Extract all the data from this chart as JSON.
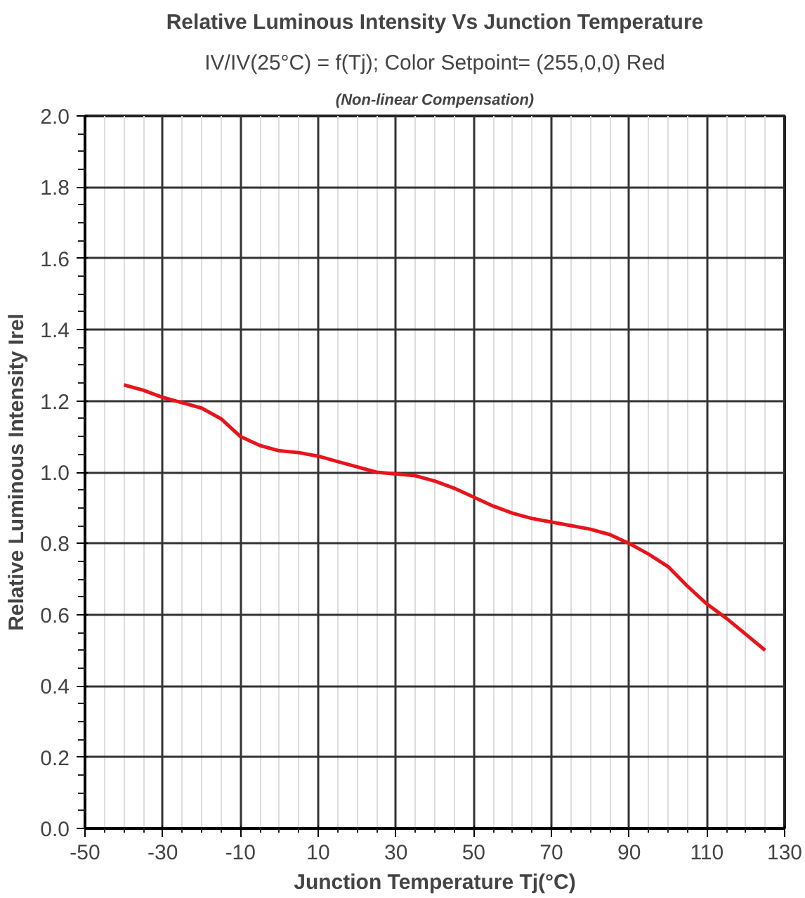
{
  "chart_data": {
    "type": "line",
    "title": "Relative Luminous Intensity Vs Junction Temperature",
    "subtitle": "IV/IV(25°C) = f(Tj); Color Setpoint= (255,0,0) Red",
    "annotations": [
      "(Non-linear Compensation)"
    ],
    "xlabel": "Junction Temperature Tj(°C)",
    "ylabel": "Relative Luminous Intensity Irel",
    "x": [
      -40,
      -35,
      -30,
      -25,
      -20,
      -15,
      -10,
      -5,
      0,
      5,
      10,
      15,
      20,
      25,
      30,
      35,
      40,
      45,
      50,
      55,
      60,
      65,
      70,
      75,
      80,
      85,
      90,
      95,
      100,
      105,
      110,
      115,
      120,
      125
    ],
    "series": [
      {
        "color": "#e8141c",
        "values": [
          1.245,
          1.23,
          1.21,
          1.195,
          1.18,
          1.15,
          1.1,
          1.075,
          1.06,
          1.055,
          1.045,
          1.03,
          1.015,
          1.0,
          0.995,
          0.99,
          0.975,
          0.955,
          0.93,
          0.905,
          0.885,
          0.87,
          0.86,
          0.85,
          0.84,
          0.825,
          0.8,
          0.77,
          0.735,
          0.68,
          0.63,
          0.59,
          0.545,
          0.5
        ]
      }
    ],
    "xlim": [
      -50,
      130
    ],
    "xticks": [
      -50,
      -30,
      -10,
      10,
      30,
      50,
      70,
      90,
      110,
      130
    ],
    "ylim": [
      0,
      2
    ],
    "yticks": [
      {
        "value": 0,
        "label": "0.0"
      },
      {
        "value": 0.2,
        "label": "0.2"
      },
      {
        "value": 0.4,
        "label": "0.4"
      },
      {
        "value": 0.6,
        "label": "0.6"
      },
      {
        "value": 0.8,
        "label": "0.8"
      },
      {
        "value": 1,
        "label": "1.0"
      },
      {
        "value": 1.2,
        "label": "1.2"
      },
      {
        "value": 1.4,
        "label": "1.4"
      },
      {
        "value": 1.6,
        "label": "1.6"
      },
      {
        "value": 1.8,
        "label": "1.8"
      },
      {
        "value": 2,
        "label": "2.0"
      }
    ],
    "grid": true,
    "line_style": "solid",
    "marker": "none"
  }
}
